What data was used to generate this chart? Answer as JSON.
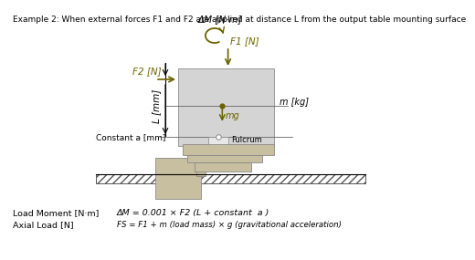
{
  "title": "Example 2: When external forces F1 and F2 are applied at distance L from the output table mounting surface",
  "load_moment_label": "Load Moment [N·m]",
  "load_moment_formula": "ΔM = 0.001 × F2 (L + constant  a )",
  "axial_load_label": "Axial Load [N]",
  "axial_load_formula": "FS = F1 + m (load mass) × g (gravitational acceleration)",
  "delta_m_label": "ΔM [N·m]",
  "f2_label": "F2 [N]",
  "f1_label": "F1 [N]",
  "mg_label": "mg",
  "m_label": "m [kg]",
  "L_label": "L [mm]",
  "constant_a_label": "Constant a [mm]",
  "fulcrum_label": "Fulcrum",
  "bg_color": "#ffffff",
  "box_fill": "#d4d4d4",
  "box_edge": "#999999",
  "dark_olive": "#6b6300",
  "arrow_color": "#6b6300",
  "mechanism_fill": "#c8bfa0",
  "mechanism_edge": "#888888",
  "line_color": "#666666"
}
